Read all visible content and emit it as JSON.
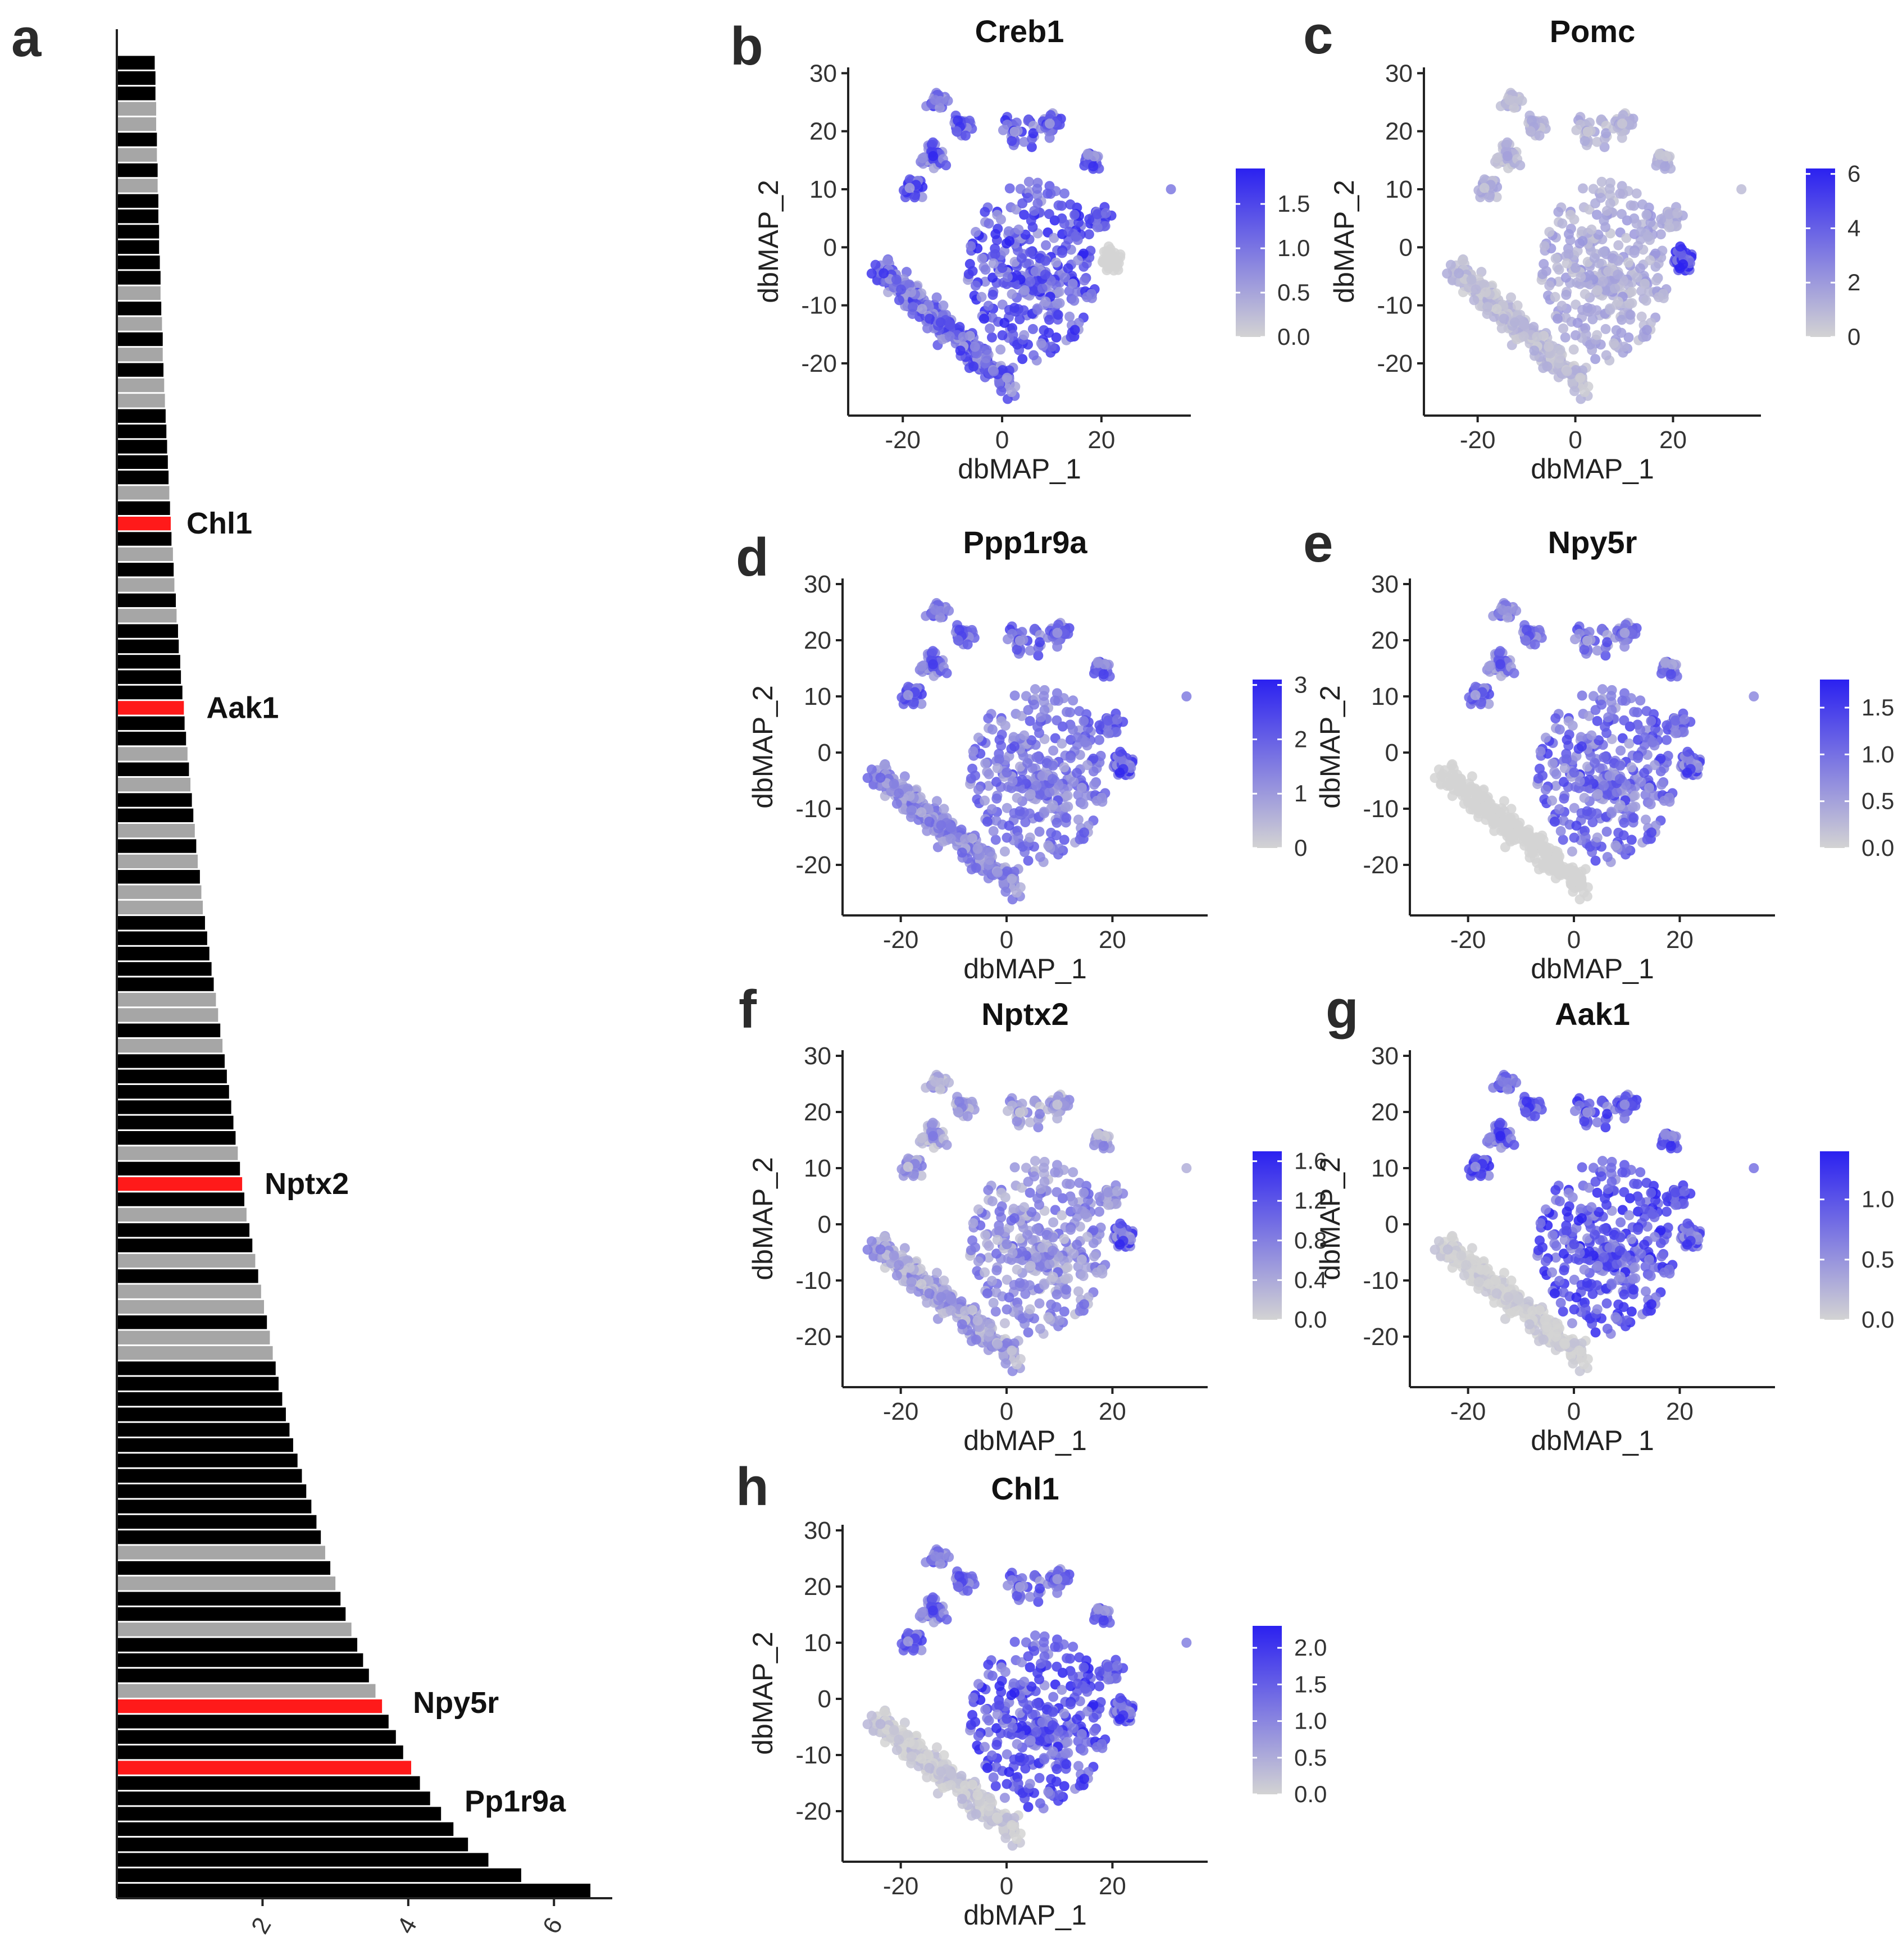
{
  "colors": {
    "bar_default": "#000000",
    "bar_gray": "#a6a6a6",
    "bar_highlight": "#ff1a1a",
    "umap_low": "#d3d3d3",
    "umap_high": "#2b21f0"
  },
  "chart_data": [
    {
      "id": "a",
      "panel_label": "a",
      "type": "bar",
      "orientation": "horizontal",
      "title": "",
      "xlabel": "",
      "ylabel": "",
      "xlim": [
        0,
        6.8
      ],
      "xticks": [
        "2",
        "4",
        "6"
      ],
      "xtick_values": [
        2,
        4,
        6
      ],
      "bar_count": 120,
      "values": [
        0.52,
        0.53,
        0.53,
        0.54,
        0.54,
        0.55,
        0.55,
        0.56,
        0.56,
        0.57,
        0.57,
        0.58,
        0.58,
        0.59,
        0.6,
        0.6,
        0.61,
        0.62,
        0.63,
        0.63,
        0.64,
        0.65,
        0.66,
        0.67,
        0.68,
        0.69,
        0.7,
        0.71,
        0.72,
        0.73,
        0.74,
        0.75,
        0.77,
        0.78,
        0.79,
        0.81,
        0.82,
        0.84,
        0.85,
        0.87,
        0.88,
        0.9,
        0.92,
        0.93,
        0.95,
        0.97,
        0.99,
        1.01,
        1.03,
        1.05,
        1.07,
        1.09,
        1.11,
        1.14,
        1.16,
        1.18,
        1.21,
        1.24,
        1.27,
        1.3,
        1.33,
        1.36,
        1.39,
        1.42,
        1.45,
        1.48,
        1.51,
        1.54,
        1.57,
        1.6,
        1.63,
        1.66,
        1.69,
        1.72,
        1.75,
        1.78,
        1.82,
        1.86,
        1.9,
        1.94,
        1.98,
        2.02,
        2.06,
        2.1,
        2.14,
        2.18,
        2.22,
        2.27,
        2.32,
        2.37,
        2.42,
        2.48,
        2.54,
        2.6,
        2.67,
        2.74,
        2.8,
        2.86,
        2.93,
        3.0,
        3.07,
        3.14,
        3.22,
        3.3,
        3.38,
        3.46,
        3.55,
        3.64,
        3.73,
        3.83,
        3.93,
        4.04,
        4.16,
        4.3,
        4.45,
        4.62,
        4.82,
        5.1,
        5.55,
        6.5
      ],
      "gray_bars": [
        3,
        4,
        6,
        8,
        15,
        17,
        19,
        21,
        22,
        28,
        32,
        34,
        36,
        45,
        47,
        50,
        52,
        54,
        55,
        61,
        62,
        64,
        71,
        75,
        78,
        80,
        81,
        83,
        84,
        97,
        99,
        102,
        106,
        107
      ],
      "highlighted": [
        {
          "name": "Chl1",
          "bar_index": 30
        },
        {
          "name": "Aak1",
          "bar_index": 42
        },
        {
          "name": "Nptx2",
          "bar_index": 73
        },
        {
          "name": "Npy5r",
          "bar_index": 107
        },
        {
          "name": "Pp1r9a",
          "bar_index": 111
        }
      ]
    },
    {
      "id": "b",
      "panel_label": "b",
      "type": "scatter",
      "title": "Creb1",
      "xlabel": "dbMAP_1",
      "ylabel": "dbMAP_2",
      "xlim": [
        -31,
        38
      ],
      "ylim": [
        -29,
        31
      ],
      "xticks": [
        "-20",
        "0",
        "20"
      ],
      "xtick_values": [
        -20,
        0,
        20
      ],
      "yticks": [
        "30",
        "20",
        "10",
        "0",
        "-10",
        "-20"
      ],
      "ytick_values": [
        30,
        20,
        10,
        0,
        -10,
        -20
      ],
      "colorbar": {
        "ticks": [
          "1.5",
          "1.0",
          "0.5",
          "0.0"
        ],
        "tick_values": [
          1.5,
          1.0,
          0.5,
          0.0
        ],
        "max": 1.9
      },
      "expression": {
        "left_cluster": 0.8,
        "right_cluster": 0.9,
        "top_clusters": 0.85,
        "hotspot": 0.0,
        "noise": 0.35
      }
    },
    {
      "id": "c",
      "panel_label": "c",
      "type": "scatter",
      "title": "Pomc",
      "xlabel": "dbMAP_1",
      "ylabel": "dbMAP_2",
      "xlim": [
        -31,
        38
      ],
      "ylim": [
        -29,
        31
      ],
      "xticks": [
        "-20",
        "0",
        "20"
      ],
      "xtick_values": [
        -20,
        0,
        20
      ],
      "yticks": [
        "30",
        "20",
        "10",
        "0",
        "-10",
        "-20"
      ],
      "ytick_values": [
        30,
        20,
        10,
        0,
        -10,
        -20
      ],
      "colorbar": {
        "ticks": [
          "6",
          "4",
          "2",
          "0"
        ],
        "tick_values": [
          6,
          4,
          2,
          0
        ],
        "max": 6.2
      },
      "expression": {
        "left_cluster": 0.2,
        "right_cluster": 0.3,
        "top_clusters": 0.25,
        "hotspot": 1.0,
        "noise": 0.15
      }
    },
    {
      "id": "d",
      "panel_label": "d",
      "type": "scatter",
      "title": "Ppp1r9a",
      "xlabel": "dbMAP_1",
      "ylabel": "dbMAP_2",
      "xlim": [
        -31,
        38
      ],
      "ylim": [
        -29,
        31
      ],
      "xticks": [
        "-20",
        "0",
        "20"
      ],
      "xtick_values": [
        -20,
        0,
        20
      ],
      "yticks": [
        "30",
        "20",
        "10",
        "0",
        "-10",
        "-20"
      ],
      "ytick_values": [
        30,
        20,
        10,
        0,
        -10,
        -20
      ],
      "colorbar": {
        "ticks": [
          "3",
          "2",
          "1",
          "0"
        ],
        "tick_values": [
          3,
          2,
          1,
          0
        ],
        "max": 3.1
      },
      "expression": {
        "left_cluster": 0.55,
        "right_cluster": 0.65,
        "top_clusters": 0.75,
        "hotspot": 0.85,
        "noise": 0.2
      }
    },
    {
      "id": "e",
      "panel_label": "e",
      "type": "scatter",
      "title": "Npy5r",
      "xlabel": "dbMAP_1",
      "ylabel": "dbMAP_2",
      "xlim": [
        -31,
        38
      ],
      "ylim": [
        -29,
        31
      ],
      "xticks": [
        "-20",
        "0",
        "20"
      ],
      "xtick_values": [
        -20,
        0,
        20
      ],
      "yticks": [
        "30",
        "20",
        "10",
        "0",
        "-10",
        "-20"
      ],
      "ytick_values": [
        30,
        20,
        10,
        0,
        -10,
        -20
      ],
      "colorbar": {
        "ticks": [
          "1.5",
          "1.0",
          "0.5",
          "0.0"
        ],
        "tick_values": [
          1.5,
          1.0,
          0.5,
          0.0
        ],
        "max": 1.8
      },
      "expression": {
        "left_cluster": 0.0,
        "right_cluster": 0.75,
        "top_clusters": 0.7,
        "hotspot": 0.8,
        "noise": 0.3
      }
    },
    {
      "id": "f",
      "panel_label": "f",
      "type": "scatter",
      "title": "Nptx2",
      "xlabel": "dbMAP_1",
      "ylabel": "dbMAP_2",
      "xlim": [
        -31,
        38
      ],
      "ylim": [
        -29,
        31
      ],
      "xticks": [
        "-20",
        "0",
        "20"
      ],
      "xtick_values": [
        -20,
        0,
        20
      ],
      "yticks": [
        "30",
        "20",
        "10",
        "0",
        "-10",
        "-20"
      ],
      "ytick_values": [
        30,
        20,
        10,
        0,
        -10,
        -20
      ],
      "colorbar": {
        "ticks": [
          "1.6",
          "1.2",
          "0.8",
          "0.4",
          "0.0"
        ],
        "tick_values": [
          1.6,
          1.2,
          0.8,
          0.4,
          0.0
        ],
        "max": 1.7
      },
      "expression": {
        "left_cluster": 0.45,
        "right_cluster": 0.55,
        "top_clusters": 0.45,
        "hotspot": 0.85,
        "noise": 0.35
      }
    },
    {
      "id": "g",
      "panel_label": "g",
      "type": "scatter",
      "title": "Aak1",
      "xlabel": "dbMAP_1",
      "ylabel": "dbMAP_2",
      "xlim": [
        -31,
        38
      ],
      "ylim": [
        -29,
        31
      ],
      "xticks": [
        "-20",
        "0",
        "20"
      ],
      "xtick_values": [
        -20,
        0,
        20
      ],
      "yticks": [
        "30",
        "20",
        "10",
        "0",
        "-10",
        "-20"
      ],
      "ytick_values": [
        30,
        20,
        10,
        0,
        -10,
        -20
      ],
      "colorbar": {
        "ticks": [
          "1.0",
          "0.5",
          "0.0"
        ],
        "tick_values": [
          1.0,
          0.5,
          0.0
        ],
        "max": 1.4
      },
      "expression": {
        "left_cluster": 0.1,
        "right_cluster": 0.9,
        "top_clusters": 0.85,
        "hotspot": 0.8,
        "noise": 0.25
      }
    },
    {
      "id": "h",
      "panel_label": "h",
      "type": "scatter",
      "title": "Chl1",
      "xlabel": "dbMAP_1",
      "ylabel": "dbMAP_2",
      "xlim": [
        -31,
        38
      ],
      "ylim": [
        -29,
        31
      ],
      "xticks": [
        "-20",
        "0",
        "20"
      ],
      "xtick_values": [
        -20,
        0,
        20
      ],
      "yticks": [
        "30",
        "20",
        "10",
        "0",
        "-10",
        "-20"
      ],
      "ytick_values": [
        30,
        20,
        10,
        0,
        -10,
        -20
      ],
      "colorbar": {
        "ticks": [
          "2.0",
          "1.5",
          "1.0",
          "0.5",
          "0.0"
        ],
        "tick_values": [
          2.0,
          1.5,
          1.0,
          0.5,
          0.0
        ],
        "max": 2.3
      },
      "expression": {
        "left_cluster": 0.15,
        "right_cluster": 0.9,
        "top_clusters": 0.75,
        "hotspot": 0.85,
        "noise": 0.25
      }
    }
  ]
}
